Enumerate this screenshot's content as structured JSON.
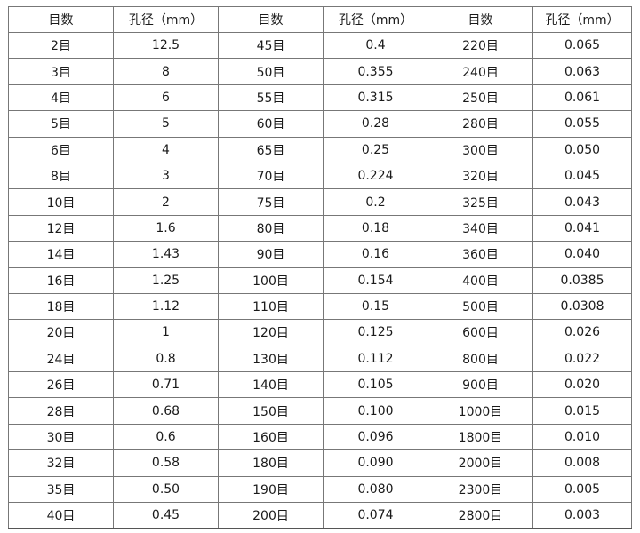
{
  "table": {
    "headers": [
      "目数",
      "孔径（mm）",
      "目数",
      "孔径（mm）",
      "目数",
      "孔径（mm）"
    ],
    "rows": [
      [
        "2目",
        "12.5",
        "45目",
        "0.4",
        "220目",
        "0.065"
      ],
      [
        "3目",
        "8",
        "50目",
        "0.355",
        "240目",
        "0.063"
      ],
      [
        "4目",
        "6",
        "55目",
        "0.315",
        "250目",
        "0.061"
      ],
      [
        "5目",
        "5",
        "60目",
        "0.28",
        "280目",
        "0.055"
      ],
      [
        "6目",
        "4",
        "65目",
        "0.25",
        "300目",
        "0.050"
      ],
      [
        "8目",
        "3",
        "70目",
        "0.224",
        "320目",
        "0.045"
      ],
      [
        "10目",
        "2",
        "75目",
        "0.2",
        "325目",
        "0.043"
      ],
      [
        "12目",
        "1.6",
        "80目",
        "0.18",
        "340目",
        "0.041"
      ],
      [
        "14目",
        "1.43",
        "90目",
        "0.16",
        "360目",
        "0.040"
      ],
      [
        "16目",
        "1.25",
        "100目",
        "0.154",
        "400目",
        "0.0385"
      ],
      [
        "18目",
        "1.12",
        "110目",
        "0.15",
        "500目",
        "0.0308"
      ],
      [
        "20目",
        "1",
        "120目",
        "0.125",
        "600目",
        "0.026"
      ],
      [
        "24目",
        "0.8",
        "130目",
        "0.112",
        "800目",
        "0.022"
      ],
      [
        "26目",
        "0.71",
        "140目",
        "0.105",
        "900目",
        "0.020"
      ],
      [
        "28目",
        "0.68",
        "150目",
        "0.100",
        "1000目",
        "0.015"
      ],
      [
        "30目",
        "0.6",
        "160目",
        "0.096",
        "1800目",
        "0.010"
      ],
      [
        "32目",
        "0.58",
        "180目",
        "0.090",
        "2000目",
        "0.008"
      ],
      [
        "35目",
        "0.50",
        "190目",
        "0.080",
        "2300目",
        "0.005"
      ],
      [
        "40目",
        "0.45",
        "200目",
        "0.074",
        "2800目",
        "0.003"
      ]
    ]
  }
}
